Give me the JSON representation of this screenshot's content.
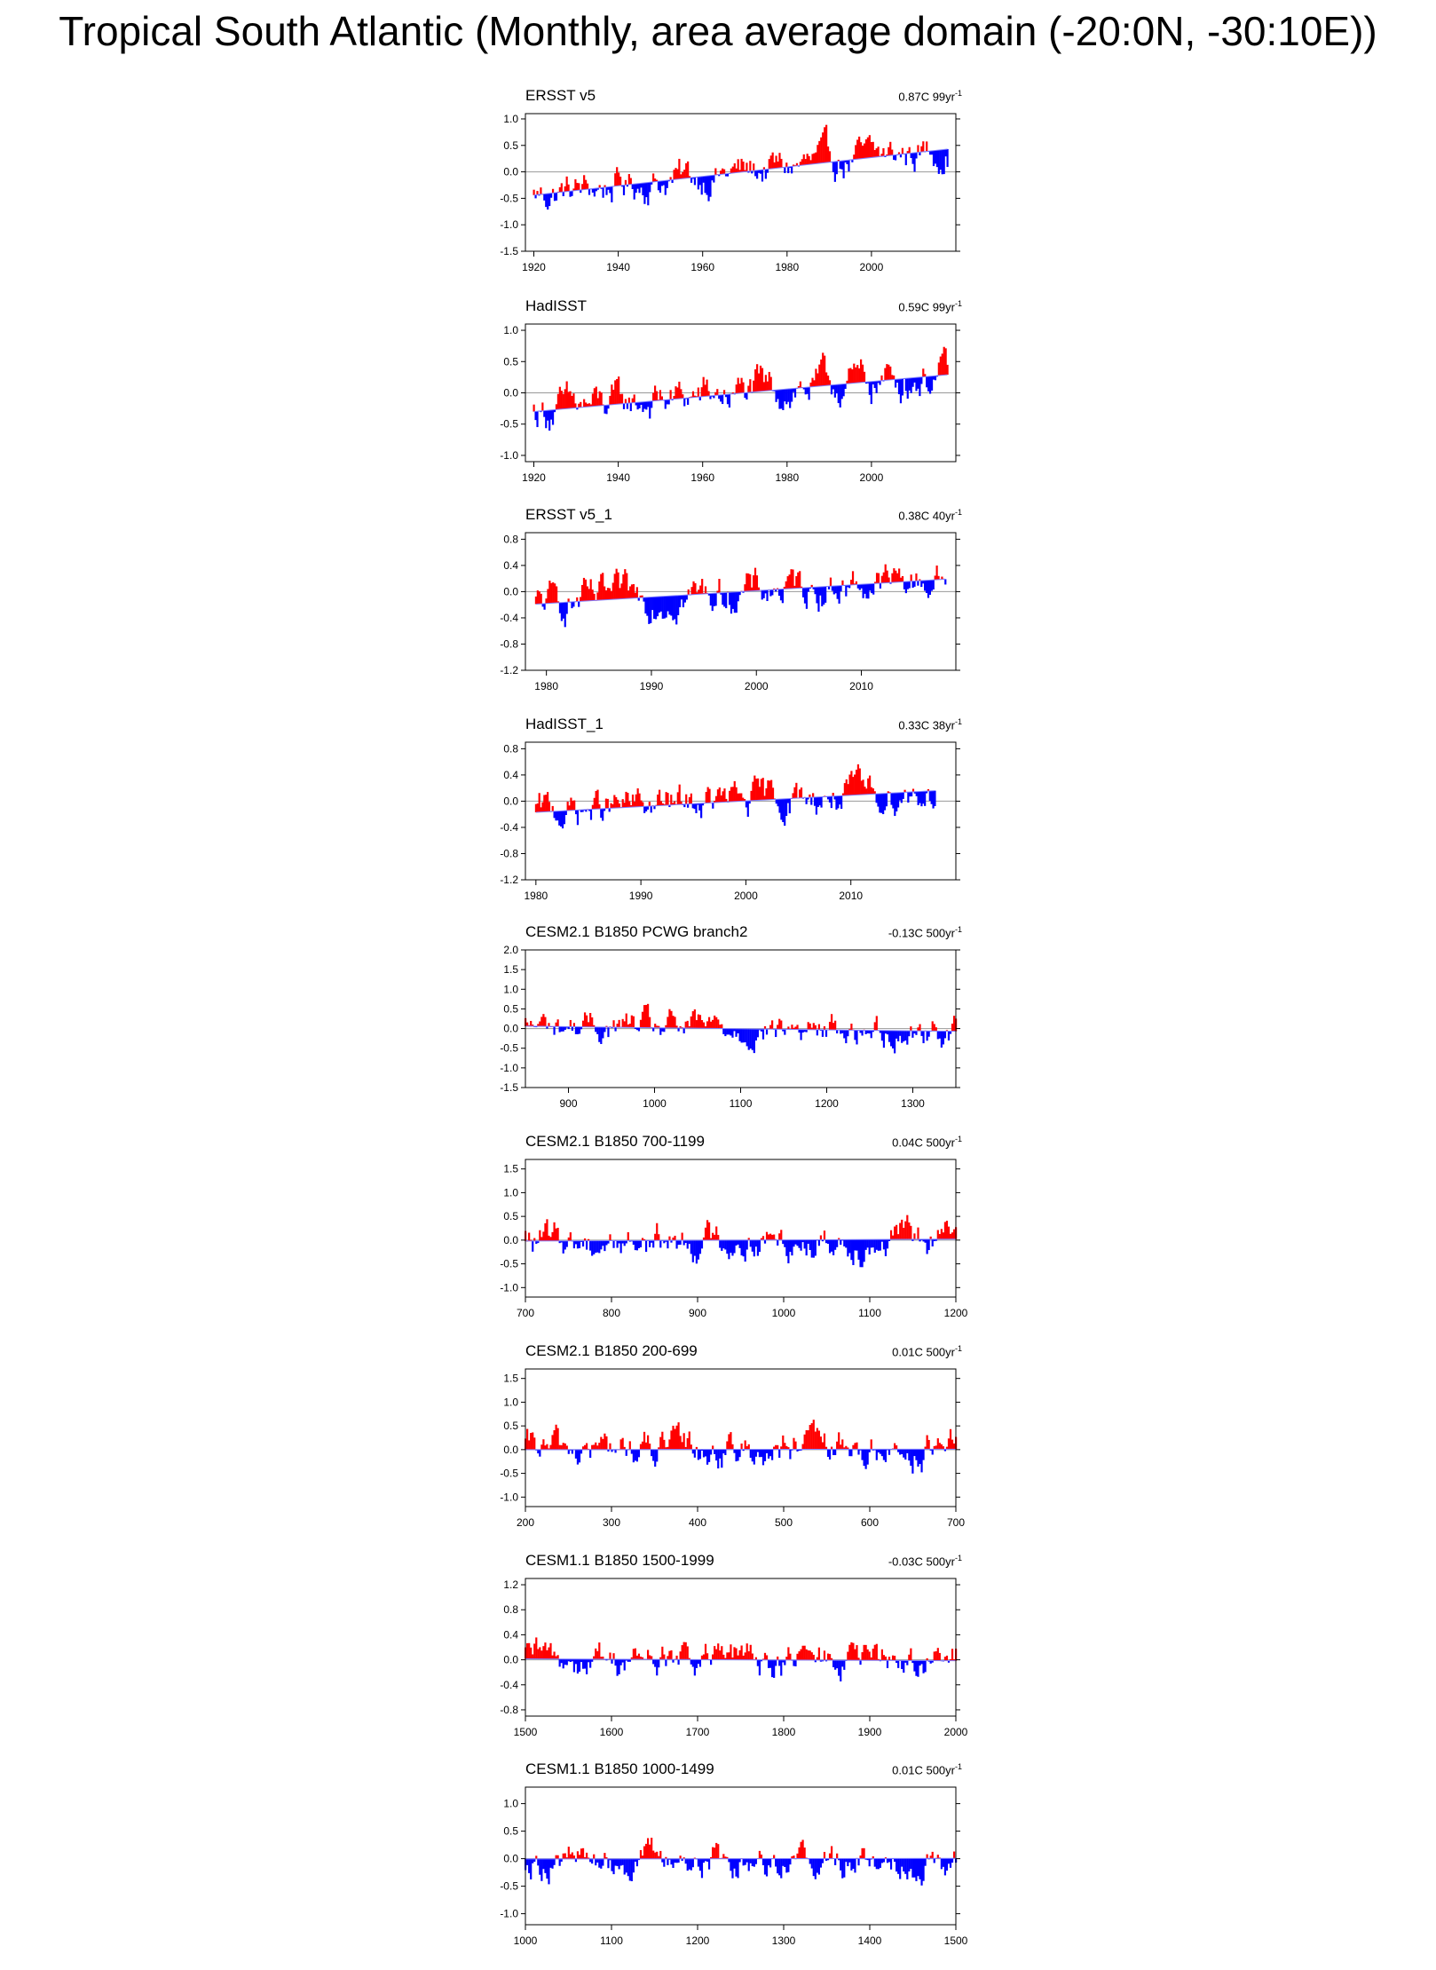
{
  "title": "Tropical South Atlantic (Monthly, area average domain (-20:0N, -30:10E))",
  "colors": {
    "positive": "#ff0000",
    "negative": "#0000ff",
    "trend": "#8080ff",
    "zero": "#999999"
  },
  "chart_data": [
    {
      "type": "bar",
      "title": "ERSST v5",
      "trend_label": "0.87C 99yr",
      "trend_unit_sup": "-1",
      "xlim": [
        1918,
        2020
      ],
      "ylim": [
        -1.5,
        1.1
      ],
      "xticks": [
        1920,
        1940,
        1960,
        1980,
        2000
      ],
      "yticks": [
        1.0,
        0.5,
        0.0,
        -0.5,
        -1.0,
        -1.5
      ],
      "ytick_labels": [
        "1.0",
        "0.5",
        "0.0",
        "-0.5",
        "-1.0",
        "-1.5"
      ],
      "trend_line": {
        "x": [
          1920,
          2018
        ],
        "y": [
          -0.44,
          0.43
        ]
      },
      "anomaly_amplitude": 0.3
    },
    {
      "type": "bar",
      "title": "HadISST",
      "trend_label": "0.59C 99yr",
      "trend_unit_sup": "-1",
      "xlim": [
        1918,
        2020
      ],
      "ylim": [
        -1.1,
        1.1
      ],
      "xticks": [
        1920,
        1940,
        1960,
        1980,
        2000
      ],
      "yticks": [
        1.0,
        0.5,
        0.0,
        -0.5,
        -1.0
      ],
      "ytick_labels": [
        "1.0",
        "0.5",
        "0.0",
        "-0.5",
        "-1.0"
      ],
      "trend_line": {
        "x": [
          1920,
          2018
        ],
        "y": [
          -0.3,
          0.29
        ]
      },
      "anomaly_amplitude": 0.28
    },
    {
      "type": "bar",
      "title": "ERSST v5_1",
      "trend_label": "0.38C 40yr",
      "trend_unit_sup": "-1",
      "xlim": [
        1978,
        2019
      ],
      "ylim": [
        -1.2,
        0.9
      ],
      "xticks": [
        1980,
        1990,
        2000,
        2010
      ],
      "yticks": [
        0.8,
        0.4,
        0.0,
        -0.4,
        -0.8,
        -1.2
      ],
      "ytick_labels": [
        "0.8",
        "0.4",
        "0.0",
        "-0.4",
        "-0.8",
        "-1.2"
      ],
      "trend_line": {
        "x": [
          1979,
          2018
        ],
        "y": [
          -0.19,
          0.19
        ]
      },
      "anomaly_amplitude": 0.25
    },
    {
      "type": "bar",
      "title": "HadISST_1",
      "trend_label": "0.33C 38yr",
      "trend_unit_sup": "-1",
      "xlim": [
        1979,
        2020
      ],
      "ylim": [
        -1.2,
        0.9
      ],
      "xticks": [
        1980,
        1990,
        2000,
        2010
      ],
      "yticks": [
        0.8,
        0.4,
        0.0,
        -0.4,
        -0.8,
        -1.2
      ],
      "ytick_labels": [
        "0.8",
        "0.4",
        "0.0",
        "-0.4",
        "-0.8",
        "-1.2"
      ],
      "trend_line": {
        "x": [
          1980,
          2018
        ],
        "y": [
          -0.17,
          0.16
        ]
      },
      "anomaly_amplitude": 0.24
    },
    {
      "type": "bar",
      "title": "CESM2.1 B1850 PCWG branch2",
      "trend_label": "-0.13C 500yr",
      "trend_unit_sup": "-1",
      "xlim": [
        850,
        1350
      ],
      "ylim": [
        -1.5,
        2.0
      ],
      "xticks": [
        900,
        1000,
        1100,
        1200,
        1300
      ],
      "yticks": [
        2.0,
        1.5,
        1.0,
        0.5,
        0.0,
        -0.5,
        -1.0,
        -1.5
      ],
      "ytick_labels": [
        "2.0",
        "1.5",
        "1.0",
        "0.5",
        "0.0",
        "-0.5",
        "-1.0",
        "-1.5"
      ],
      "trend_line": {
        "x": [
          850,
          1350
        ],
        "y": [
          0.06,
          -0.07
        ]
      },
      "anomaly_amplitude": 0.35
    },
    {
      "type": "bar",
      "title": "CESM2.1 B1850 700-1199",
      "trend_label": "0.04C 500yr",
      "trend_unit_sup": "-1",
      "xlim": [
        700,
        1200
      ],
      "ylim": [
        -1.2,
        1.7
      ],
      "xticks": [
        700,
        800,
        900,
        1000,
        1100,
        1200
      ],
      "yticks": [
        1.5,
        1.0,
        0.5,
        0.0,
        -0.5,
        -1.0
      ],
      "ytick_labels": [
        "1.5",
        "1.0",
        "0.5",
        "0.0",
        "-0.5",
        "-1.0"
      ],
      "trend_line": {
        "x": [
          700,
          1200
        ],
        "y": [
          -0.02,
          0.02
        ]
      },
      "anomaly_amplitude": 0.33
    },
    {
      "type": "bar",
      "title": "CESM2.1 B1850 200-699",
      "trend_label": "0.01C 500yr",
      "trend_unit_sup": "-1",
      "xlim": [
        200,
        700
      ],
      "ylim": [
        -1.2,
        1.7
      ],
      "xticks": [
        200,
        300,
        400,
        500,
        600,
        700
      ],
      "yticks": [
        1.5,
        1.0,
        0.5,
        0.0,
        -0.5,
        -1.0
      ],
      "ytick_labels": [
        "1.5",
        "1.0",
        "0.5",
        "0.0",
        "-0.5",
        "-1.0"
      ],
      "trend_line": {
        "x": [
          200,
          700
        ],
        "y": [
          0.0,
          0.01
        ]
      },
      "anomaly_amplitude": 0.33
    },
    {
      "type": "bar",
      "title": "CESM1.1 B1850 1500-1999",
      "trend_label": "-0.03C 500yr",
      "trend_unit_sup": "-1",
      "xlim": [
        1500,
        2000
      ],
      "ylim": [
        -0.9,
        1.3
      ],
      "xticks": [
        1500,
        1600,
        1700,
        1800,
        1900,
        2000
      ],
      "yticks": [
        1.2,
        0.8,
        0.4,
        0.0,
        -0.4,
        -0.8
      ],
      "ytick_labels": [
        "1.2",
        "0.8",
        "0.4",
        "0.0",
        "-0.4",
        "-0.8"
      ],
      "trend_line": {
        "x": [
          1500,
          2000
        ],
        "y": [
          0.015,
          -0.015
        ]
      },
      "anomaly_amplitude": 0.24
    },
    {
      "type": "bar",
      "title": "CESM1.1 B1850 1000-1499",
      "trend_label": "0.01C 500yr",
      "trend_unit_sup": "-1",
      "xlim": [
        1000,
        1500
      ],
      "ylim": [
        -1.2,
        1.3
      ],
      "xticks": [
        1000,
        1100,
        1200,
        1300,
        1400,
        1500
      ],
      "yticks": [
        1.0,
        0.5,
        0.0,
        -0.5,
        -1.0
      ],
      "ytick_labels": [
        "1.0",
        "0.5",
        "0.0",
        "-0.5",
        "-1.0"
      ],
      "trend_line": {
        "x": [
          1000,
          1500
        ],
        "y": [
          -0.005,
          0.005
        ]
      },
      "anomaly_amplitude": 0.26
    }
  ]
}
